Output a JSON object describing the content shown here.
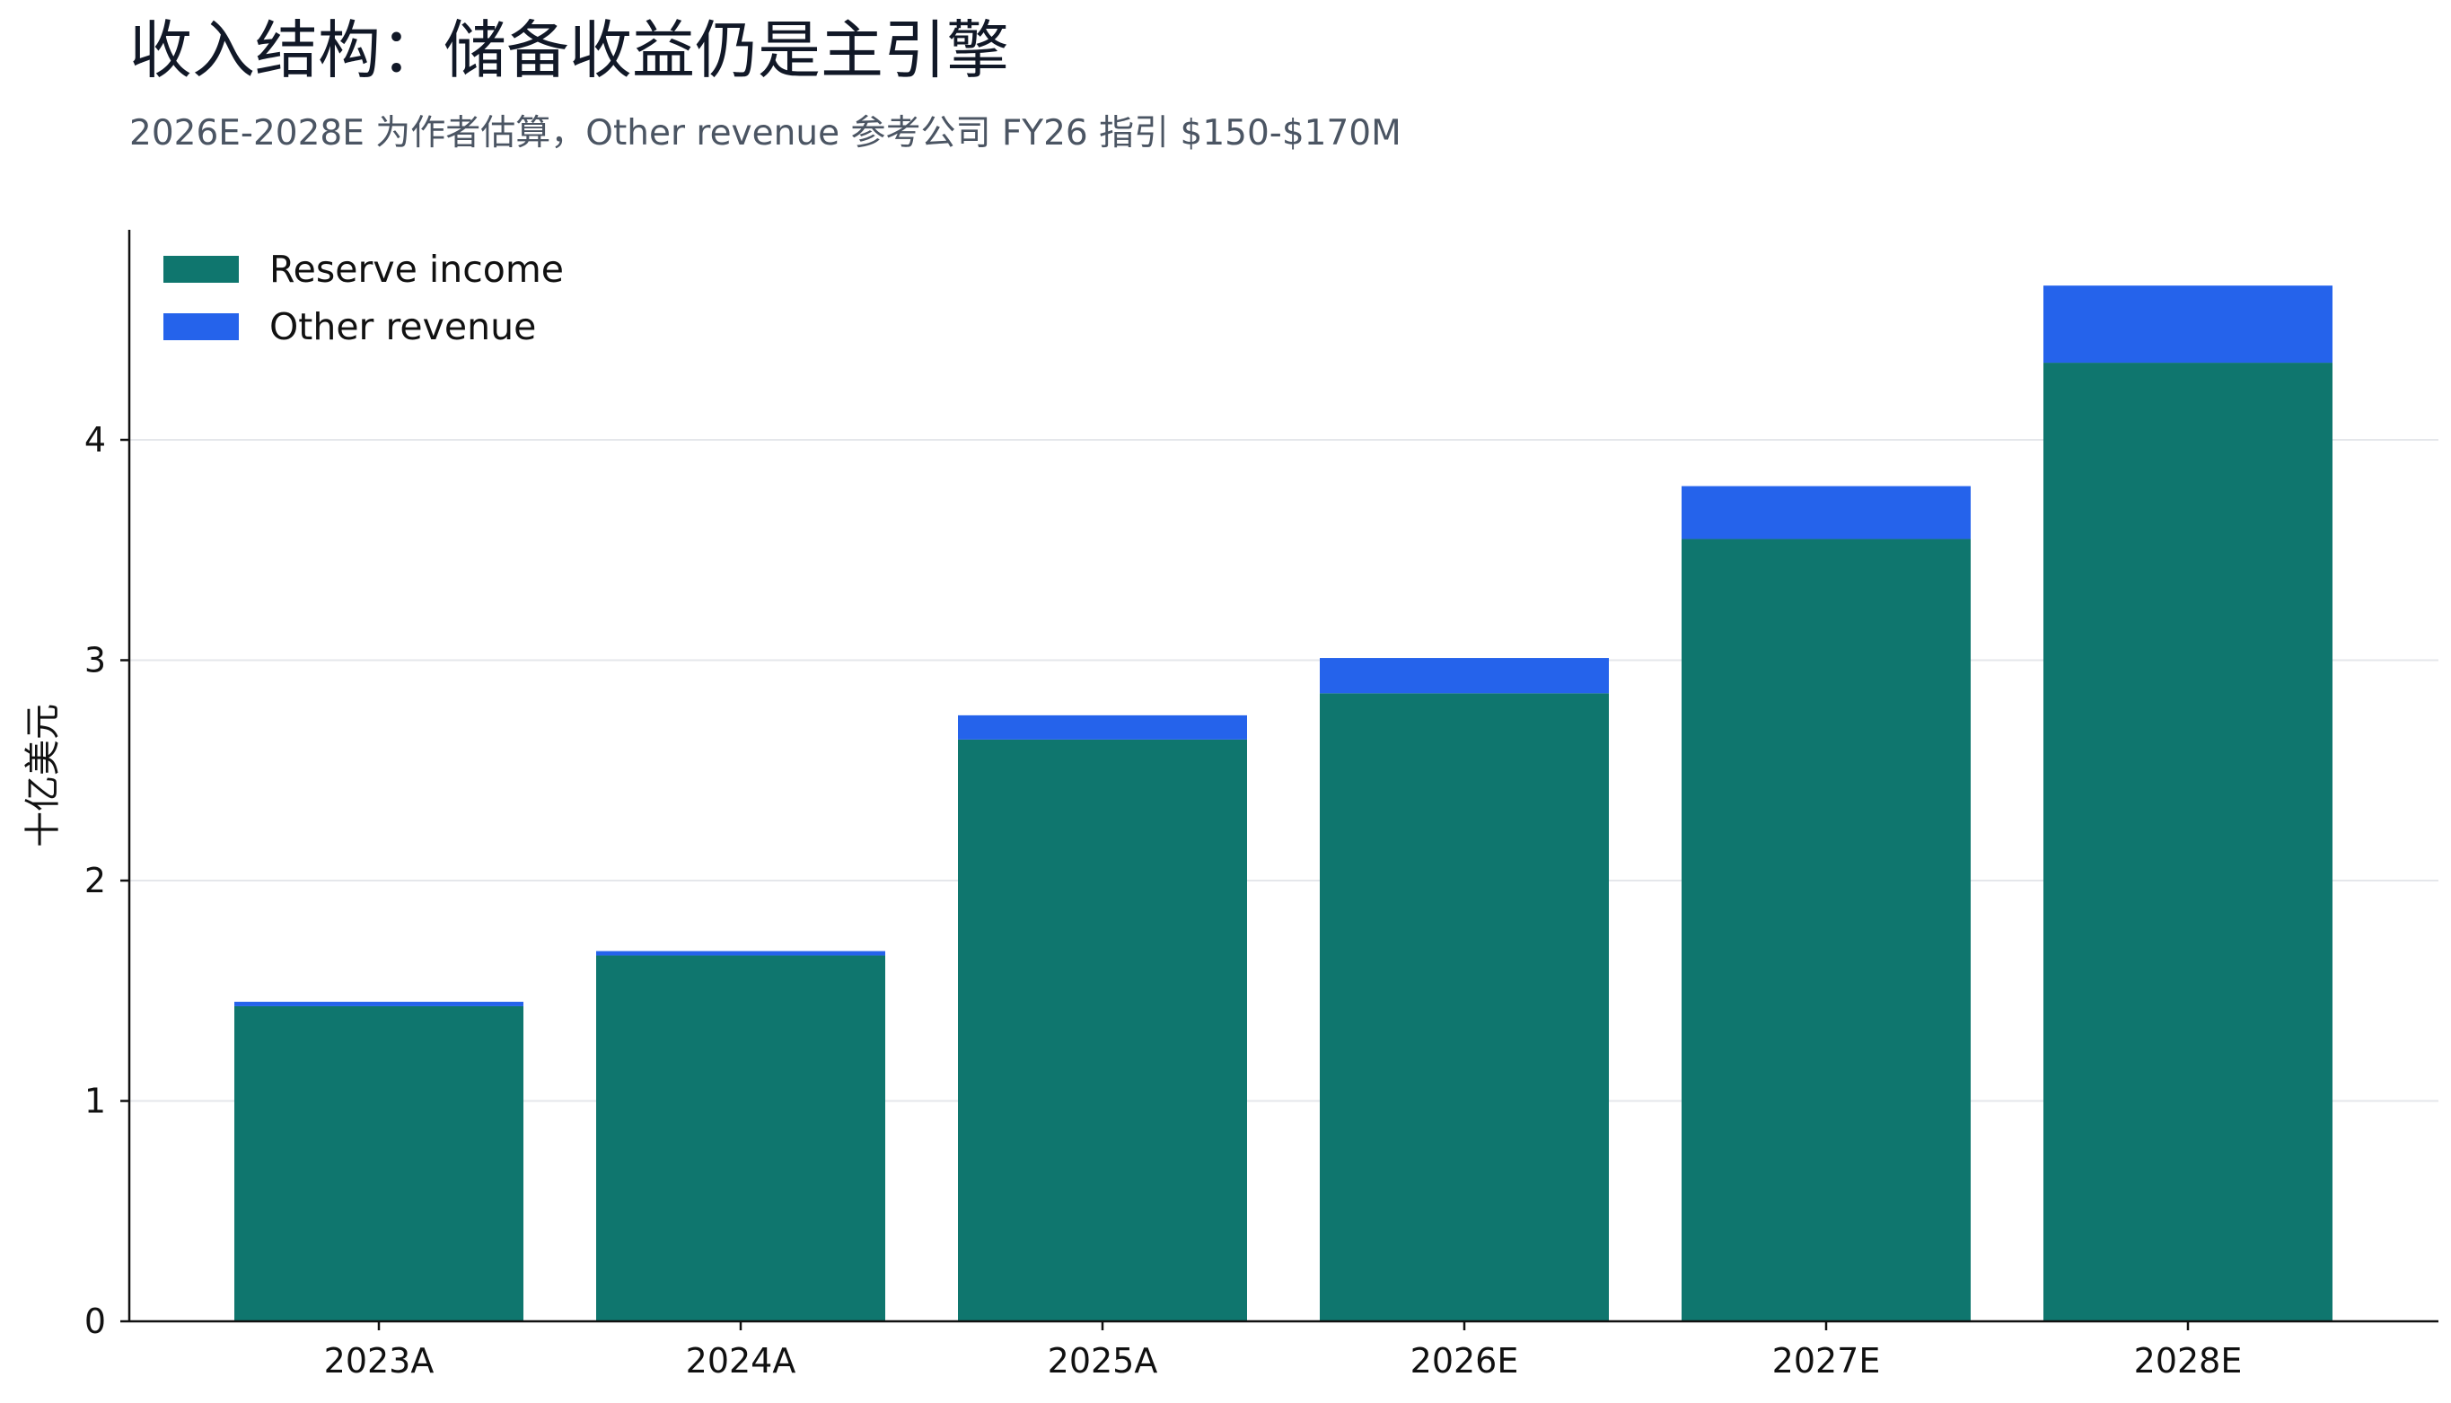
{
  "chart_data": {
    "type": "bar",
    "stacked": true,
    "title": "收入结构：储备收益仍是主引擎",
    "subtitle": "2026E-2028E 为作者估算，Other revenue 参考公司 FY26 指引 $150-$170M",
    "xlabel": "",
    "ylabel": "十亿美元",
    "categories": [
      "2023A",
      "2024A",
      "2025A",
      "2026E",
      "2027E",
      "2028E"
    ],
    "series": [
      {
        "name": "Reserve income",
        "color": "#0f766e",
        "values": [
          1.43,
          1.66,
          2.64,
          2.85,
          3.55,
          4.35
        ]
      },
      {
        "name": "Other revenue",
        "color": "#2563eb",
        "values": [
          0.02,
          0.02,
          0.11,
          0.16,
          0.24,
          0.35
        ]
      }
    ],
    "ylim": [
      0,
      4.95
    ],
    "yticks": [
      0,
      1,
      2,
      3,
      4
    ],
    "grid": true,
    "legend": "top-left"
  }
}
